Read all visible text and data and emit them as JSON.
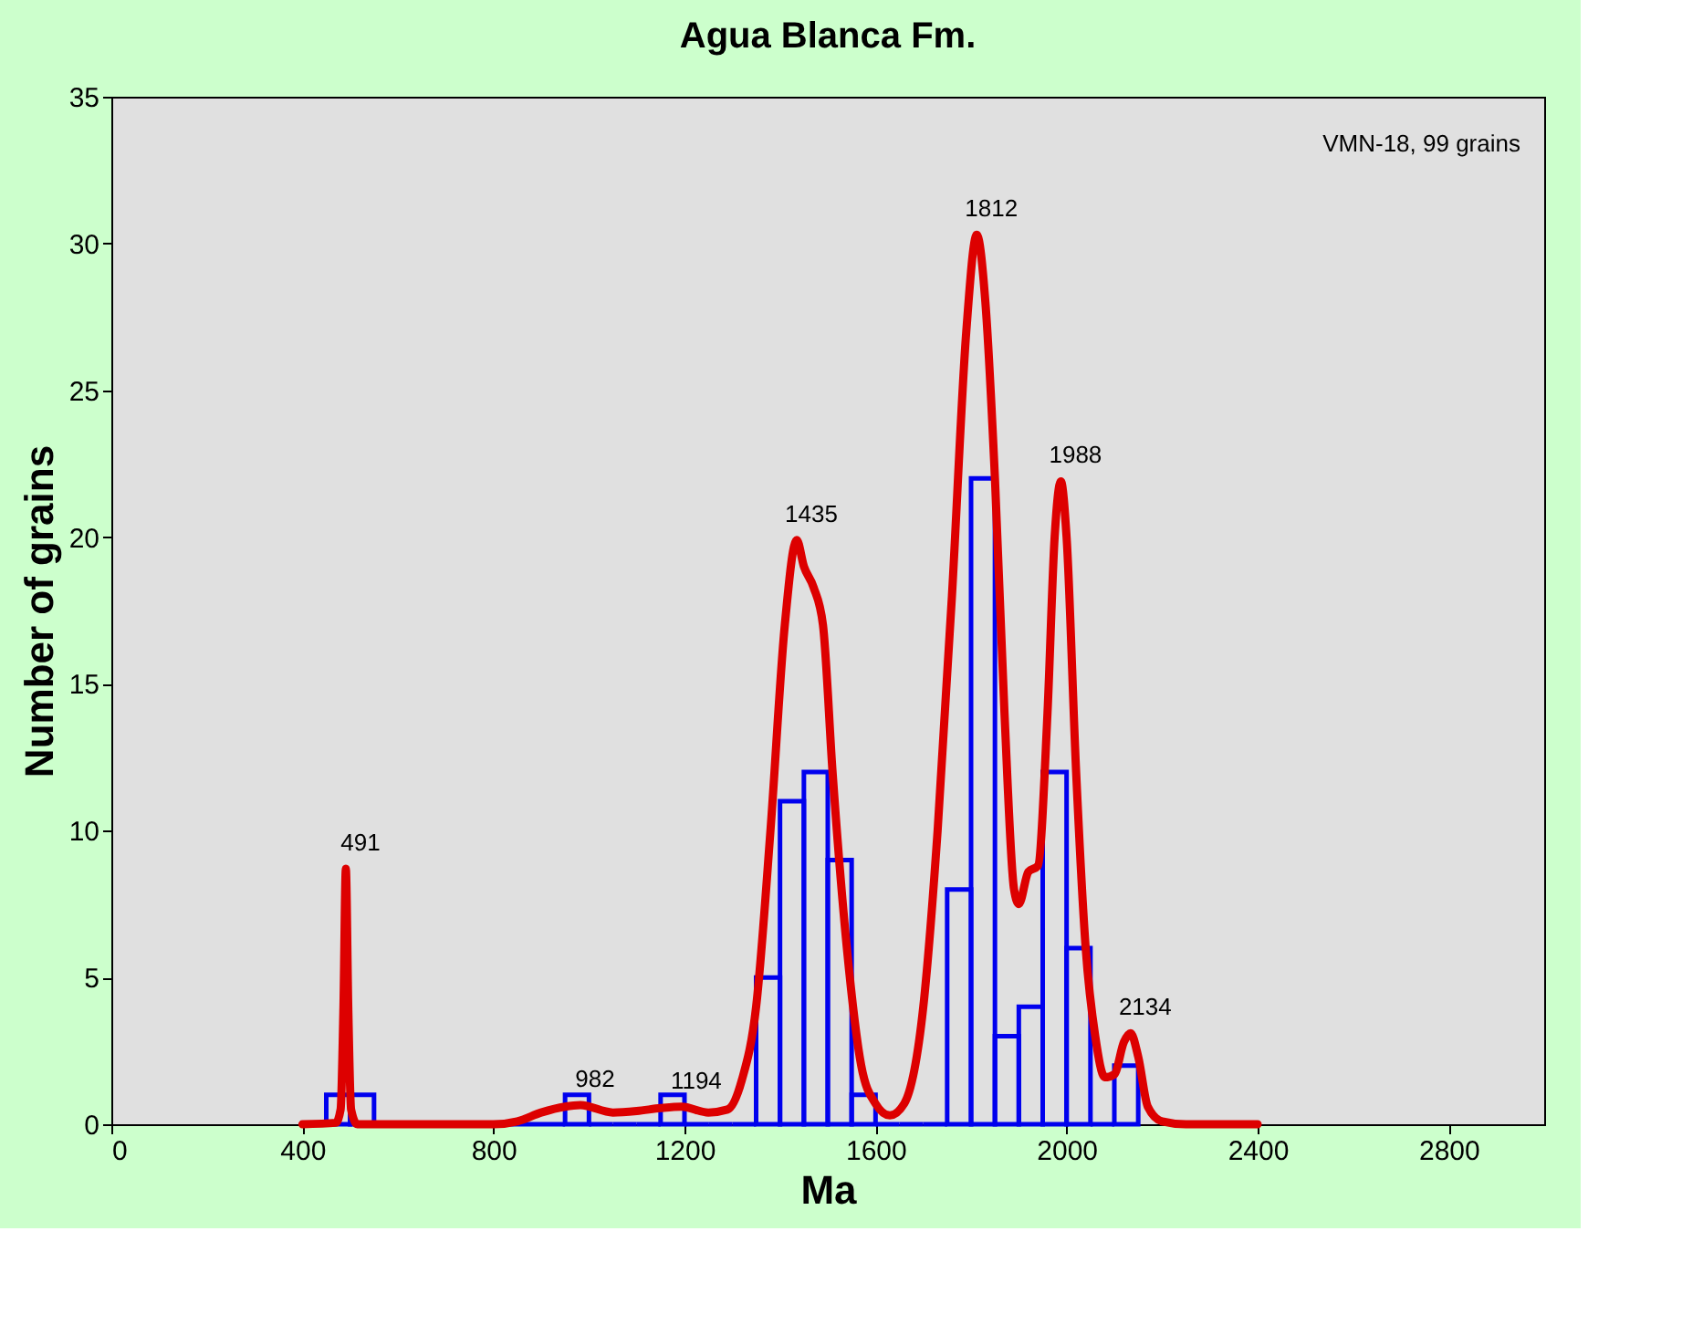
{
  "chart_data": {
    "type": "histogram",
    "title": "Agua Blanca Fm.",
    "xlabel": "Ma",
    "ylabel": "Number of grains",
    "xlim": [
      0,
      3000
    ],
    "xticks": [
      0,
      400,
      800,
      1200,
      1600,
      2000,
      2400,
      2800
    ],
    "ylim": [
      0,
      35
    ],
    "yticks": [
      0,
      5,
      10,
      15,
      20,
      25,
      30,
      35
    ],
    "grid": false,
    "series": [
      {
        "color": "#0000ee",
        "bins": [
          450,
          500,
          550,
          600,
          650,
          700,
          750,
          800,
          850,
          900,
          950,
          1000,
          1050,
          1100,
          1150,
          1200,
          1250,
          1300,
          1350,
          1400,
          1450,
          1500,
          1550,
          1600,
          1650,
          1700,
          1750,
          1800,
          1850,
          1900,
          1950,
          2000,
          2050,
          2100,
          2150
        ],
        "values": [
          1,
          1,
          0,
          0,
          0,
          0,
          0,
          0,
          0,
          0,
          1,
          0,
          0,
          0,
          1,
          0,
          0,
          0,
          5,
          11,
          12,
          9,
          1,
          0,
          0,
          0,
          8,
          22,
          3,
          4,
          12,
          6,
          0,
          2
        ]
      },
      {
        "type": "line",
        "color": "#dd0000",
        "x": [
          400,
          470,
          480,
          486,
          491,
          496,
          502,
          515,
          800,
          850,
          900,
          950,
          982,
          1050,
          1100,
          1150,
          1194,
          1250,
          1290,
          1320,
          1350,
          1380,
          1410,
          1435,
          1450,
          1470,
          1490,
          1510,
          1540,
          1570,
          1600,
          1630,
          1660,
          1700,
          1730,
          1760,
          1790,
          1812,
          1830,
          1850,
          1870,
          1890,
          1900,
          1920,
          1940,
          1960,
          1975,
          1988,
          2000,
          2020,
          2040,
          2060,
          2080,
          2100,
          2120,
          2134,
          2150,
          2170,
          2200,
          2250,
          2400
        ],
        "values": [
          0,
          0.05,
          0.5,
          4,
          8.7,
          4,
          0.5,
          0,
          0,
          0.1,
          0.4,
          0.6,
          0.65,
          0.4,
          0.45,
          0.55,
          0.6,
          0.4,
          0.5,
          1.5,
          4,
          10,
          17,
          19.9,
          19,
          18.3,
          17,
          12,
          6,
          2,
          0.7,
          0.3,
          0.7,
          4,
          10,
          18,
          27,
          30.3,
          28,
          22,
          14,
          8,
          7.5,
          8.6,
          8.8,
          14,
          20,
          21.9,
          20,
          12,
          6,
          3,
          1.6,
          1.7,
          2.8,
          3.1,
          2.3,
          0.6,
          0.1,
          0,
          0
        ]
      }
    ],
    "annotations": [
      "VMN-18, 99 grains",
      {
        "text": "491",
        "x": 491,
        "y": 8.7
      },
      {
        "text": "982",
        "x": 982,
        "y": 0.65
      },
      {
        "text": "1194",
        "x": 1194,
        "y": 0.6
      },
      {
        "text": "1435",
        "x": 1435,
        "y": 19.9
      },
      {
        "text": "1812",
        "x": 1812,
        "y": 30.3
      },
      {
        "text": "1988",
        "x": 1988,
        "y": 21.9
      },
      {
        "text": "2134",
        "x": 2134,
        "y": 3.1
      }
    ]
  }
}
